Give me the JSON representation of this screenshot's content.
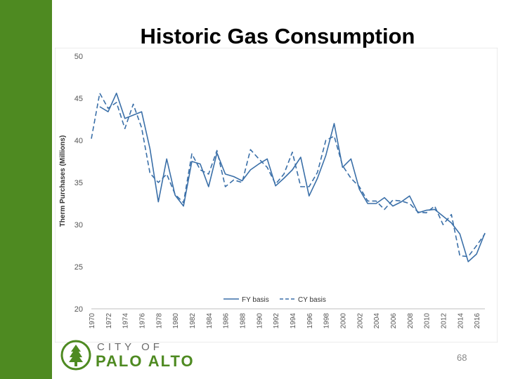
{
  "slide": {
    "title": "Historic Gas Consumption",
    "page_number": "68",
    "logo_line1": "CITY OF",
    "logo_line2": "PALO ALTO"
  },
  "colors": {
    "accent_green": "#4e8a21",
    "series_color": "#3a6fa8"
  },
  "chart_data": {
    "type": "line",
    "title": "",
    "xlabel": "",
    "ylabel": "Therm Purchases (Millions)",
    "ylim": [
      20,
      50
    ],
    "yticks": [
      20,
      25,
      30,
      35,
      40,
      45,
      50
    ],
    "xlim": [
      1970,
      2016
    ],
    "xticks": [
      1970,
      1972,
      1974,
      1976,
      1978,
      1980,
      1982,
      1984,
      1986,
      1988,
      1990,
      1992,
      1994,
      1996,
      1998,
      2000,
      2002,
      2004,
      2006,
      2008,
      2010,
      2012,
      2014,
      2016
    ],
    "x": [
      1970,
      1971,
      1972,
      1973,
      1974,
      1975,
      1976,
      1977,
      1978,
      1979,
      1980,
      1981,
      1982,
      1983,
      1984,
      1985,
      1986,
      1987,
      1988,
      1989,
      1990,
      1991,
      1992,
      1993,
      1994,
      1995,
      1996,
      1997,
      1998,
      1999,
      2000,
      2001,
      2002,
      2003,
      2004,
      2005,
      2006,
      2007,
      2008,
      2009,
      2010,
      2011,
      2012,
      2013,
      2014,
      2015,
      2016,
      2017
    ],
    "series": [
      {
        "name": "FY basis",
        "style": "solid",
        "values": [
          null,
          44.0,
          43.4,
          45.6,
          42.6,
          43.0,
          43.4,
          39.0,
          32.7,
          37.8,
          33.5,
          32.2,
          37.5,
          37.2,
          34.5,
          38.5,
          36.0,
          35.7,
          35.2,
          36.5,
          37.2,
          37.8,
          34.6,
          35.5,
          36.5,
          38.0,
          33.4,
          35.5,
          38.2,
          42.0,
          36.8,
          37.8,
          34.2,
          32.5,
          32.5,
          33.2,
          32.2,
          32.7,
          33.4,
          31.4,
          31.7,
          31.8,
          31.0,
          30.2,
          28.9,
          25.6,
          26.5,
          29.0
        ]
      },
      {
        "name": "CY basis",
        "style": "dashed",
        "values": [
          40.2,
          45.6,
          43.8,
          44.5,
          41.4,
          44.3,
          41.5,
          36.1,
          35.0,
          36.0,
          33.6,
          32.6,
          38.4,
          36.5,
          36.0,
          38.8,
          34.5,
          35.3,
          35.0,
          38.9,
          37.8,
          36.8,
          34.8,
          36.0,
          38.6,
          34.5,
          34.5,
          36.2,
          40.0,
          40.5,
          37.0,
          35.5,
          34.5,
          32.8,
          32.8,
          31.8,
          32.9,
          32.8,
          32.5,
          31.5,
          31.4,
          32.2,
          30.0,
          31.2,
          26.3,
          26.2,
          27.5,
          28.9
        ]
      }
    ],
    "legend_position": "bottom-center",
    "grid": false
  }
}
